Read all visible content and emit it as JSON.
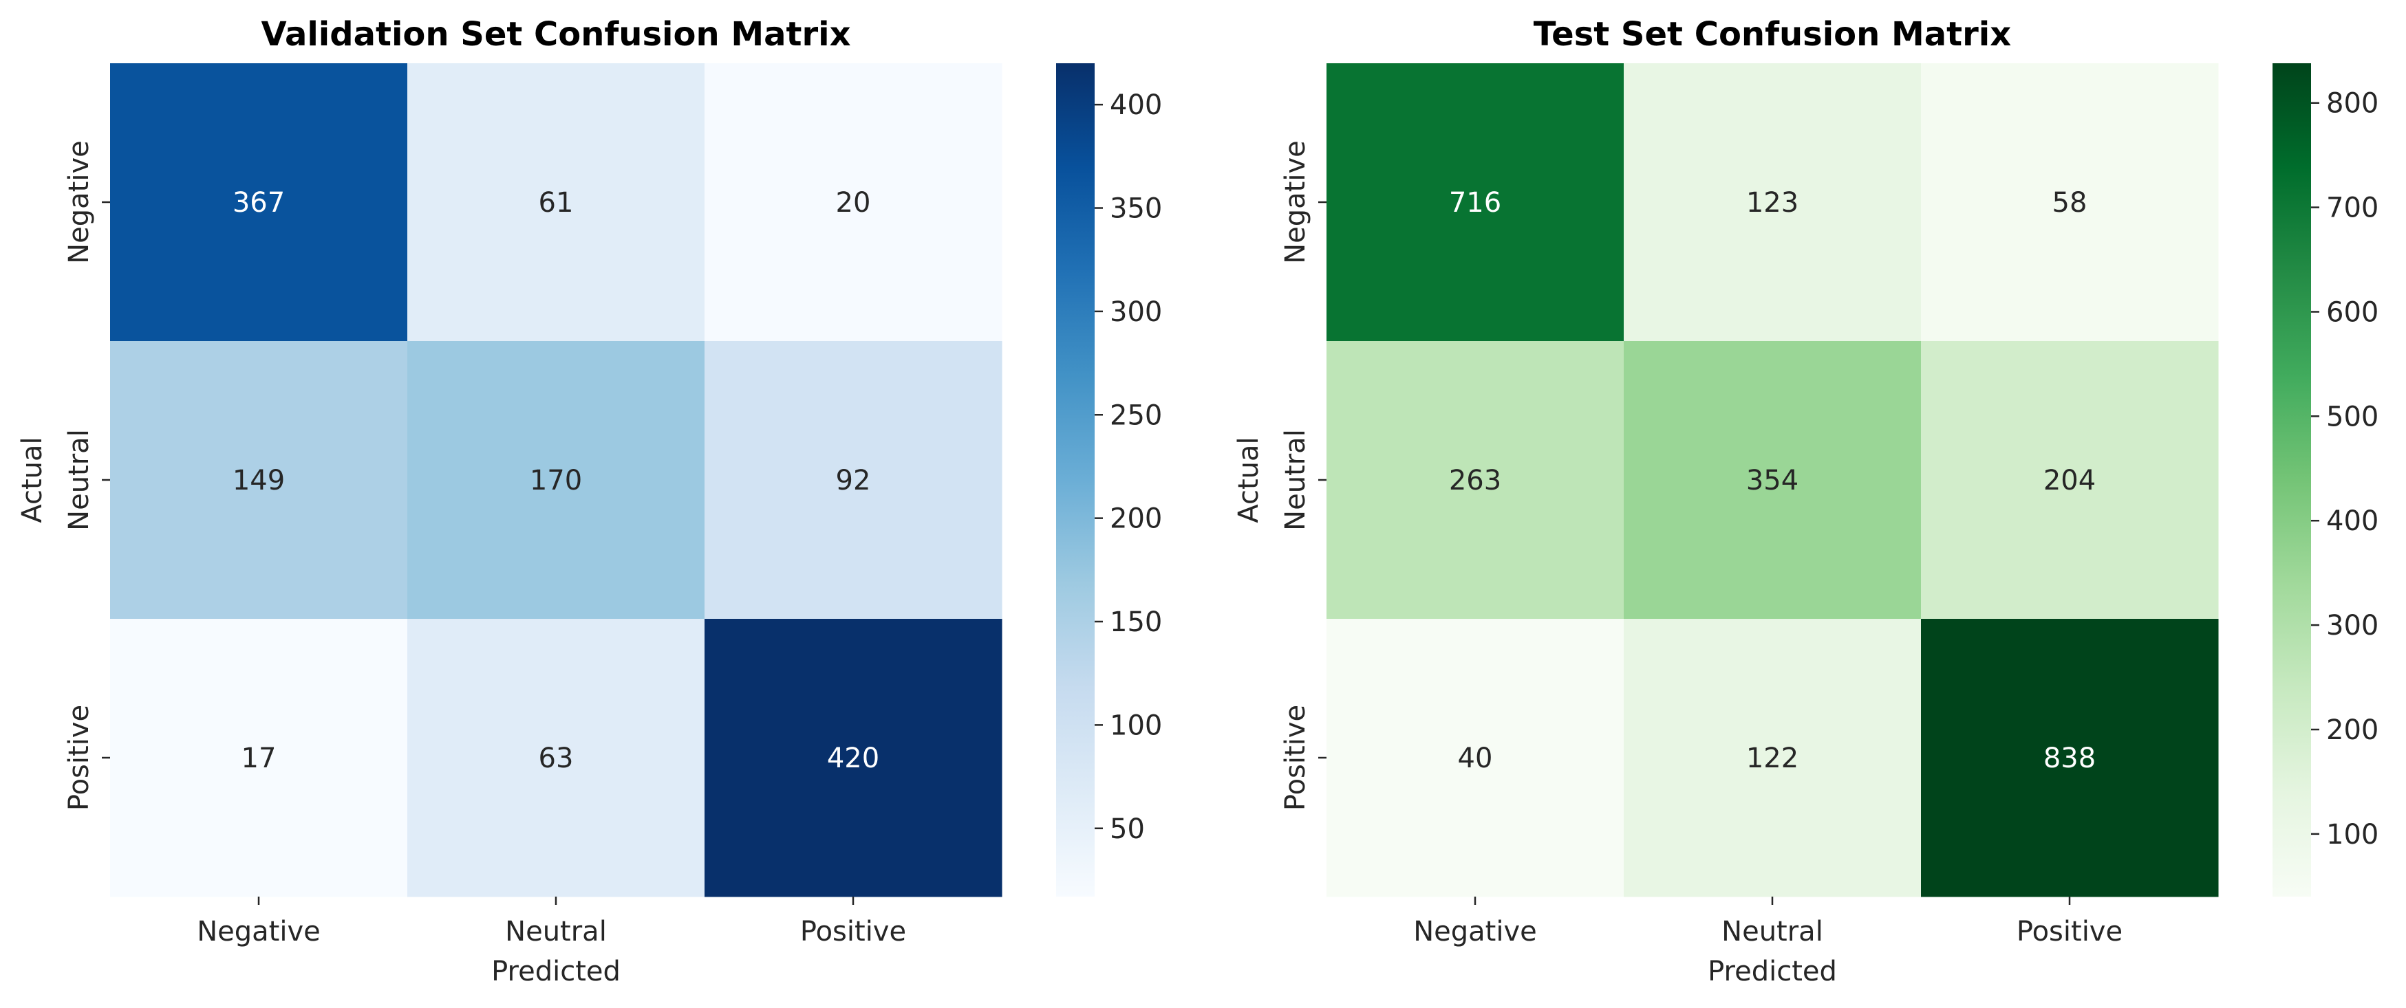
{
  "chart_data": [
    {
      "type": "heatmap",
      "title": "Validation Set Confusion Matrix",
      "xlabel": "Predicted",
      "ylabel": "Actual",
      "x_categories": [
        "Negative",
        "Neutral",
        "Positive"
      ],
      "y_categories": [
        "Negative",
        "Neutral",
        "Positive"
      ],
      "values": [
        [
          367,
          61,
          20
        ],
        [
          149,
          170,
          92
        ],
        [
          17,
          63,
          420
        ]
      ],
      "colormap": "Blues",
      "colorbar": {
        "min": 17,
        "max": 420,
        "ticks": [
          50,
          100,
          150,
          200,
          250,
          300,
          350,
          400
        ]
      },
      "grid": false
    },
    {
      "type": "heatmap",
      "title": "Test Set Confusion Matrix",
      "xlabel": "Predicted",
      "ylabel": "Actual",
      "x_categories": [
        "Negative",
        "Neutral",
        "Positive"
      ],
      "y_categories": [
        "Negative",
        "Neutral",
        "Positive"
      ],
      "values": [
        [
          716,
          123,
          58
        ],
        [
          263,
          354,
          204
        ],
        [
          40,
          122,
          838
        ]
      ],
      "colormap": "Greens",
      "colorbar": {
        "min": 40,
        "max": 838,
        "ticks": [
          100,
          200,
          300,
          400,
          500,
          600,
          700,
          800
        ]
      },
      "grid": false
    }
  ],
  "colors": {
    "blues": [
      "#f7fbff",
      "#deebf7",
      "#c6dbef",
      "#9ecae1",
      "#6baed6",
      "#4292c6",
      "#2171b5",
      "#08519c",
      "#08306b"
    ],
    "greens": [
      "#f7fcf5",
      "#e5f5e0",
      "#c7e9c0",
      "#a1d99b",
      "#74c476",
      "#41ab5d",
      "#238b45",
      "#006d2c",
      "#00441b"
    ],
    "text_dark": "#262626",
    "text_light": "#ffffff"
  }
}
